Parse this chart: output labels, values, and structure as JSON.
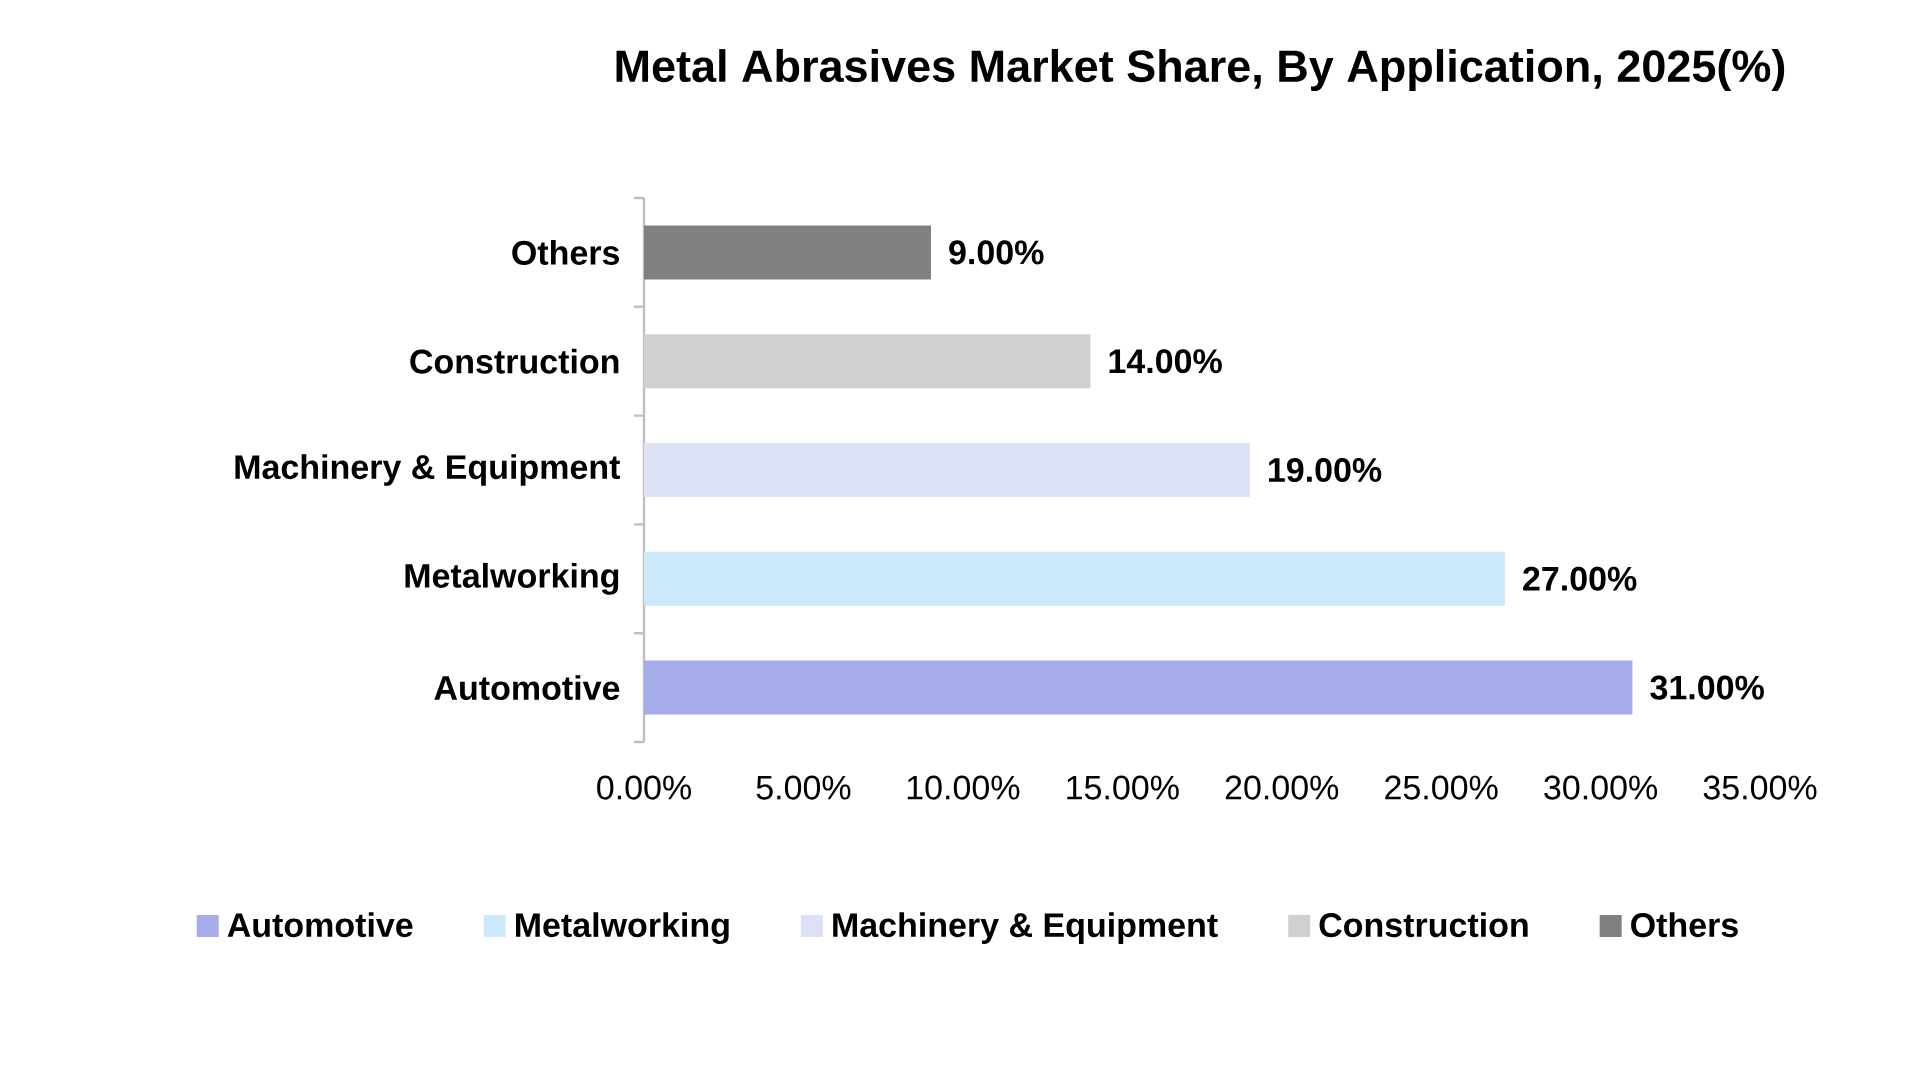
{
  "chart_data": {
    "type": "bar",
    "orientation": "horizontal",
    "title": "Metal Abrasives Market Share, By Application, 2025(%)",
    "categories": [
      "Others",
      "Construction",
      "Machinery & Equipment",
      "Metalworking",
      "Automotive"
    ],
    "series": [
      {
        "name": "Automotive",
        "color": "#a6acea",
        "values": [
          null,
          null,
          null,
          null,
          31
        ],
        "value_labels": [
          null,
          null,
          null,
          null,
          "31.00%"
        ]
      },
      {
        "name": "Metalworking",
        "color": "#cce8fb",
        "values": [
          null,
          null,
          null,
          27,
          null
        ],
        "value_labels": [
          null,
          null,
          null,
          "27.00%",
          null
        ]
      },
      {
        "name": "Machinery & Equipment",
        "color": "#dde1f5",
        "values": [
          null,
          null,
          19,
          null,
          null
        ],
        "value_labels": [
          null,
          null,
          "19.00%",
          null,
          null
        ]
      },
      {
        "name": "Construction",
        "color": "#d0d0d0",
        "values": [
          null,
          14,
          null,
          null,
          null
        ],
        "value_labels": [
          null,
          "14.00%",
          null,
          null,
          null
        ]
      },
      {
        "name": "Others",
        "color": "#808080",
        "values": [
          9,
          null,
          null,
          null,
          null
        ],
        "value_labels": [
          "9.00%",
          null,
          null,
          null,
          null
        ]
      }
    ],
    "xlim": [
      0,
      35
    ],
    "xticks": [
      {
        "value": 0,
        "label": "0.00%"
      },
      {
        "value": 5,
        "label": "5.00%"
      },
      {
        "value": 10,
        "label": "10.00%"
      },
      {
        "value": 15,
        "label": "15.00%"
      },
      {
        "value": 20,
        "label": "20.00%"
      },
      {
        "value": 25,
        "label": "25.00%"
      },
      {
        "value": 30,
        "label": "30.00%"
      },
      {
        "value": 35,
        "label": "35.00%"
      }
    ],
    "legend": "bottom"
  }
}
